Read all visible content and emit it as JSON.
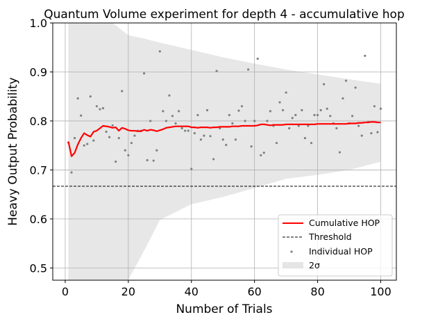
{
  "chart_data": {
    "type": "line",
    "title": "Quantum Volume experiment for depth 4 - accumulative hop",
    "xlabel": "Number of Trials",
    "ylabel": "Heavy Output Probability",
    "xlim": [
      -3.95,
      104.95
    ],
    "ylim": [
      0.475,
      1.0
    ],
    "xticks": [
      "0",
      "20",
      "40",
      "60",
      "80",
      "100"
    ],
    "yticks": [
      "0.5",
      "0.6",
      "0.7",
      "0.8",
      "0.9",
      "1.0"
    ],
    "grid": true,
    "legend_position": "lower-right",
    "threshold": 0.6667,
    "series": [
      {
        "name": "Cumulative HOP",
        "style": "line",
        "color": "#ff0000",
        "x": [
          1,
          2,
          3,
          4,
          5,
          6,
          7,
          8,
          9,
          10,
          11,
          12,
          13,
          14,
          15,
          16,
          17,
          18,
          19,
          20,
          21,
          22,
          23,
          24,
          25,
          26,
          27,
          28,
          29,
          30,
          31,
          32,
          33,
          34,
          35,
          36,
          37,
          38,
          39,
          40,
          41,
          42,
          43,
          44,
          45,
          46,
          47,
          48,
          49,
          50,
          51,
          52,
          53,
          54,
          55,
          56,
          57,
          58,
          59,
          60,
          61,
          62,
          63,
          64,
          65,
          66,
          67,
          68,
          69,
          70,
          71,
          72,
          73,
          74,
          75,
          76,
          77,
          78,
          79,
          80,
          81,
          82,
          83,
          84,
          85,
          86,
          87,
          88,
          89,
          90,
          91,
          92,
          93,
          94,
          95,
          96,
          97,
          98,
          99,
          100
        ],
        "y": [
          0.758,
          0.728,
          0.735,
          0.752,
          0.765,
          0.775,
          0.771,
          0.768,
          0.778,
          0.78,
          0.785,
          0.79,
          0.789,
          0.788,
          0.786,
          0.787,
          0.78,
          0.786,
          0.784,
          0.781,
          0.78,
          0.78,
          0.779,
          0.779,
          0.782,
          0.78,
          0.782,
          0.781,
          0.779,
          0.781,
          0.783,
          0.786,
          0.787,
          0.788,
          0.789,
          0.789,
          0.789,
          0.789,
          0.789,
          0.787,
          0.787,
          0.786,
          0.787,
          0.787,
          0.787,
          0.786,
          0.787,
          0.787,
          0.788,
          0.788,
          0.788,
          0.788,
          0.789,
          0.789,
          0.789,
          0.79,
          0.79,
          0.79,
          0.79,
          0.79,
          0.791,
          0.793,
          0.793,
          0.792,
          0.791,
          0.792,
          0.792,
          0.792,
          0.792,
          0.793,
          0.793,
          0.793,
          0.793,
          0.793,
          0.793,
          0.793,
          0.793,
          0.793,
          0.793,
          0.794,
          0.794,
          0.794,
          0.794,
          0.794,
          0.794,
          0.794,
          0.794,
          0.794,
          0.794,
          0.795,
          0.795,
          0.795,
          0.796,
          0.796,
          0.797,
          0.797,
          0.798,
          0.798,
          0.797,
          0.797
        ]
      },
      {
        "name": "Threshold",
        "style": "dashed",
        "color": "#000000",
        "y": 0.6667
      },
      {
        "name": "Individual HOP",
        "style": "scatter",
        "color": "#808080",
        "x": [
          1,
          2,
          3,
          4,
          5,
          6,
          7,
          8,
          9,
          10,
          11,
          12,
          13,
          14,
          15,
          16,
          17,
          18,
          19,
          20,
          21,
          22,
          23,
          24,
          25,
          26,
          27,
          28,
          29,
          30,
          31,
          32,
          33,
          34,
          35,
          36,
          37,
          38,
          39,
          40,
          41,
          42,
          43,
          44,
          45,
          46,
          47,
          48,
          49,
          50,
          51,
          52,
          53,
          54,
          55,
          56,
          57,
          58,
          59,
          60,
          61,
          62,
          63,
          64,
          65,
          66,
          67,
          68,
          69,
          70,
          71,
          72,
          73,
          74,
          75,
          76,
          77,
          78,
          79,
          80,
          81,
          82,
          83,
          84,
          85,
          86,
          87,
          88,
          89,
          90,
          91,
          92,
          93,
          94,
          95,
          96,
          97,
          98,
          99,
          100
        ],
        "y": [
          0.756,
          0.695,
          0.765,
          0.846,
          0.811,
          0.75,
          0.753,
          0.85,
          0.76,
          0.83,
          0.824,
          0.826,
          0.778,
          0.767,
          0.791,
          0.717,
          0.765,
          0.861,
          0.74,
          0.73,
          0.755,
          0.77,
          0.78,
          0.78,
          0.897,
          0.72,
          0.8,
          0.719,
          0.74,
          0.942,
          0.82,
          0.8,
          0.852,
          0.81,
          0.795,
          0.82,
          0.785,
          0.78,
          0.78,
          0.702,
          0.775,
          0.812,
          0.762,
          0.77,
          0.822,
          0.769,
          0.722,
          0.902,
          0.785,
          0.762,
          0.751,
          0.812,
          0.795,
          0.762,
          0.821,
          0.83,
          0.8,
          0.905,
          0.748,
          0.8,
          0.927,
          0.73,
          0.735,
          0.8,
          0.82,
          0.79,
          0.755,
          0.838,
          0.822,
          0.858,
          0.785,
          0.806,
          0.812,
          0.79,
          0.822,
          0.765,
          0.79,
          0.755,
          0.812,
          0.812,
          0.822,
          0.875,
          0.825,
          0.81,
          0.795,
          0.785,
          0.736,
          0.846,
          0.882,
          0.795,
          0.81,
          0.868,
          0.79,
          0.77,
          0.933,
          0.798,
          0.775,
          0.83,
          0.777,
          0.825
        ]
      },
      {
        "name": "2σ",
        "style": "band",
        "color": "#d3d3d3",
        "x": [
          1,
          3,
          5,
          7,
          10,
          15,
          20,
          25,
          30,
          40,
          50,
          60,
          70,
          80,
          90,
          100
        ],
        "upper": [
          1.0,
          1.0,
          1.0,
          1.0,
          1.0,
          1.0,
          0.975,
          0.968,
          0.96,
          0.945,
          0.93,
          0.917,
          0.905,
          0.895,
          0.885,
          0.876
        ],
        "lower": [
          0.475,
          0.475,
          0.475,
          0.475,
          0.475,
          0.475,
          0.476,
          0.535,
          0.598,
          0.63,
          0.645,
          0.663,
          0.682,
          0.69,
          0.7,
          0.717
        ]
      }
    ]
  }
}
